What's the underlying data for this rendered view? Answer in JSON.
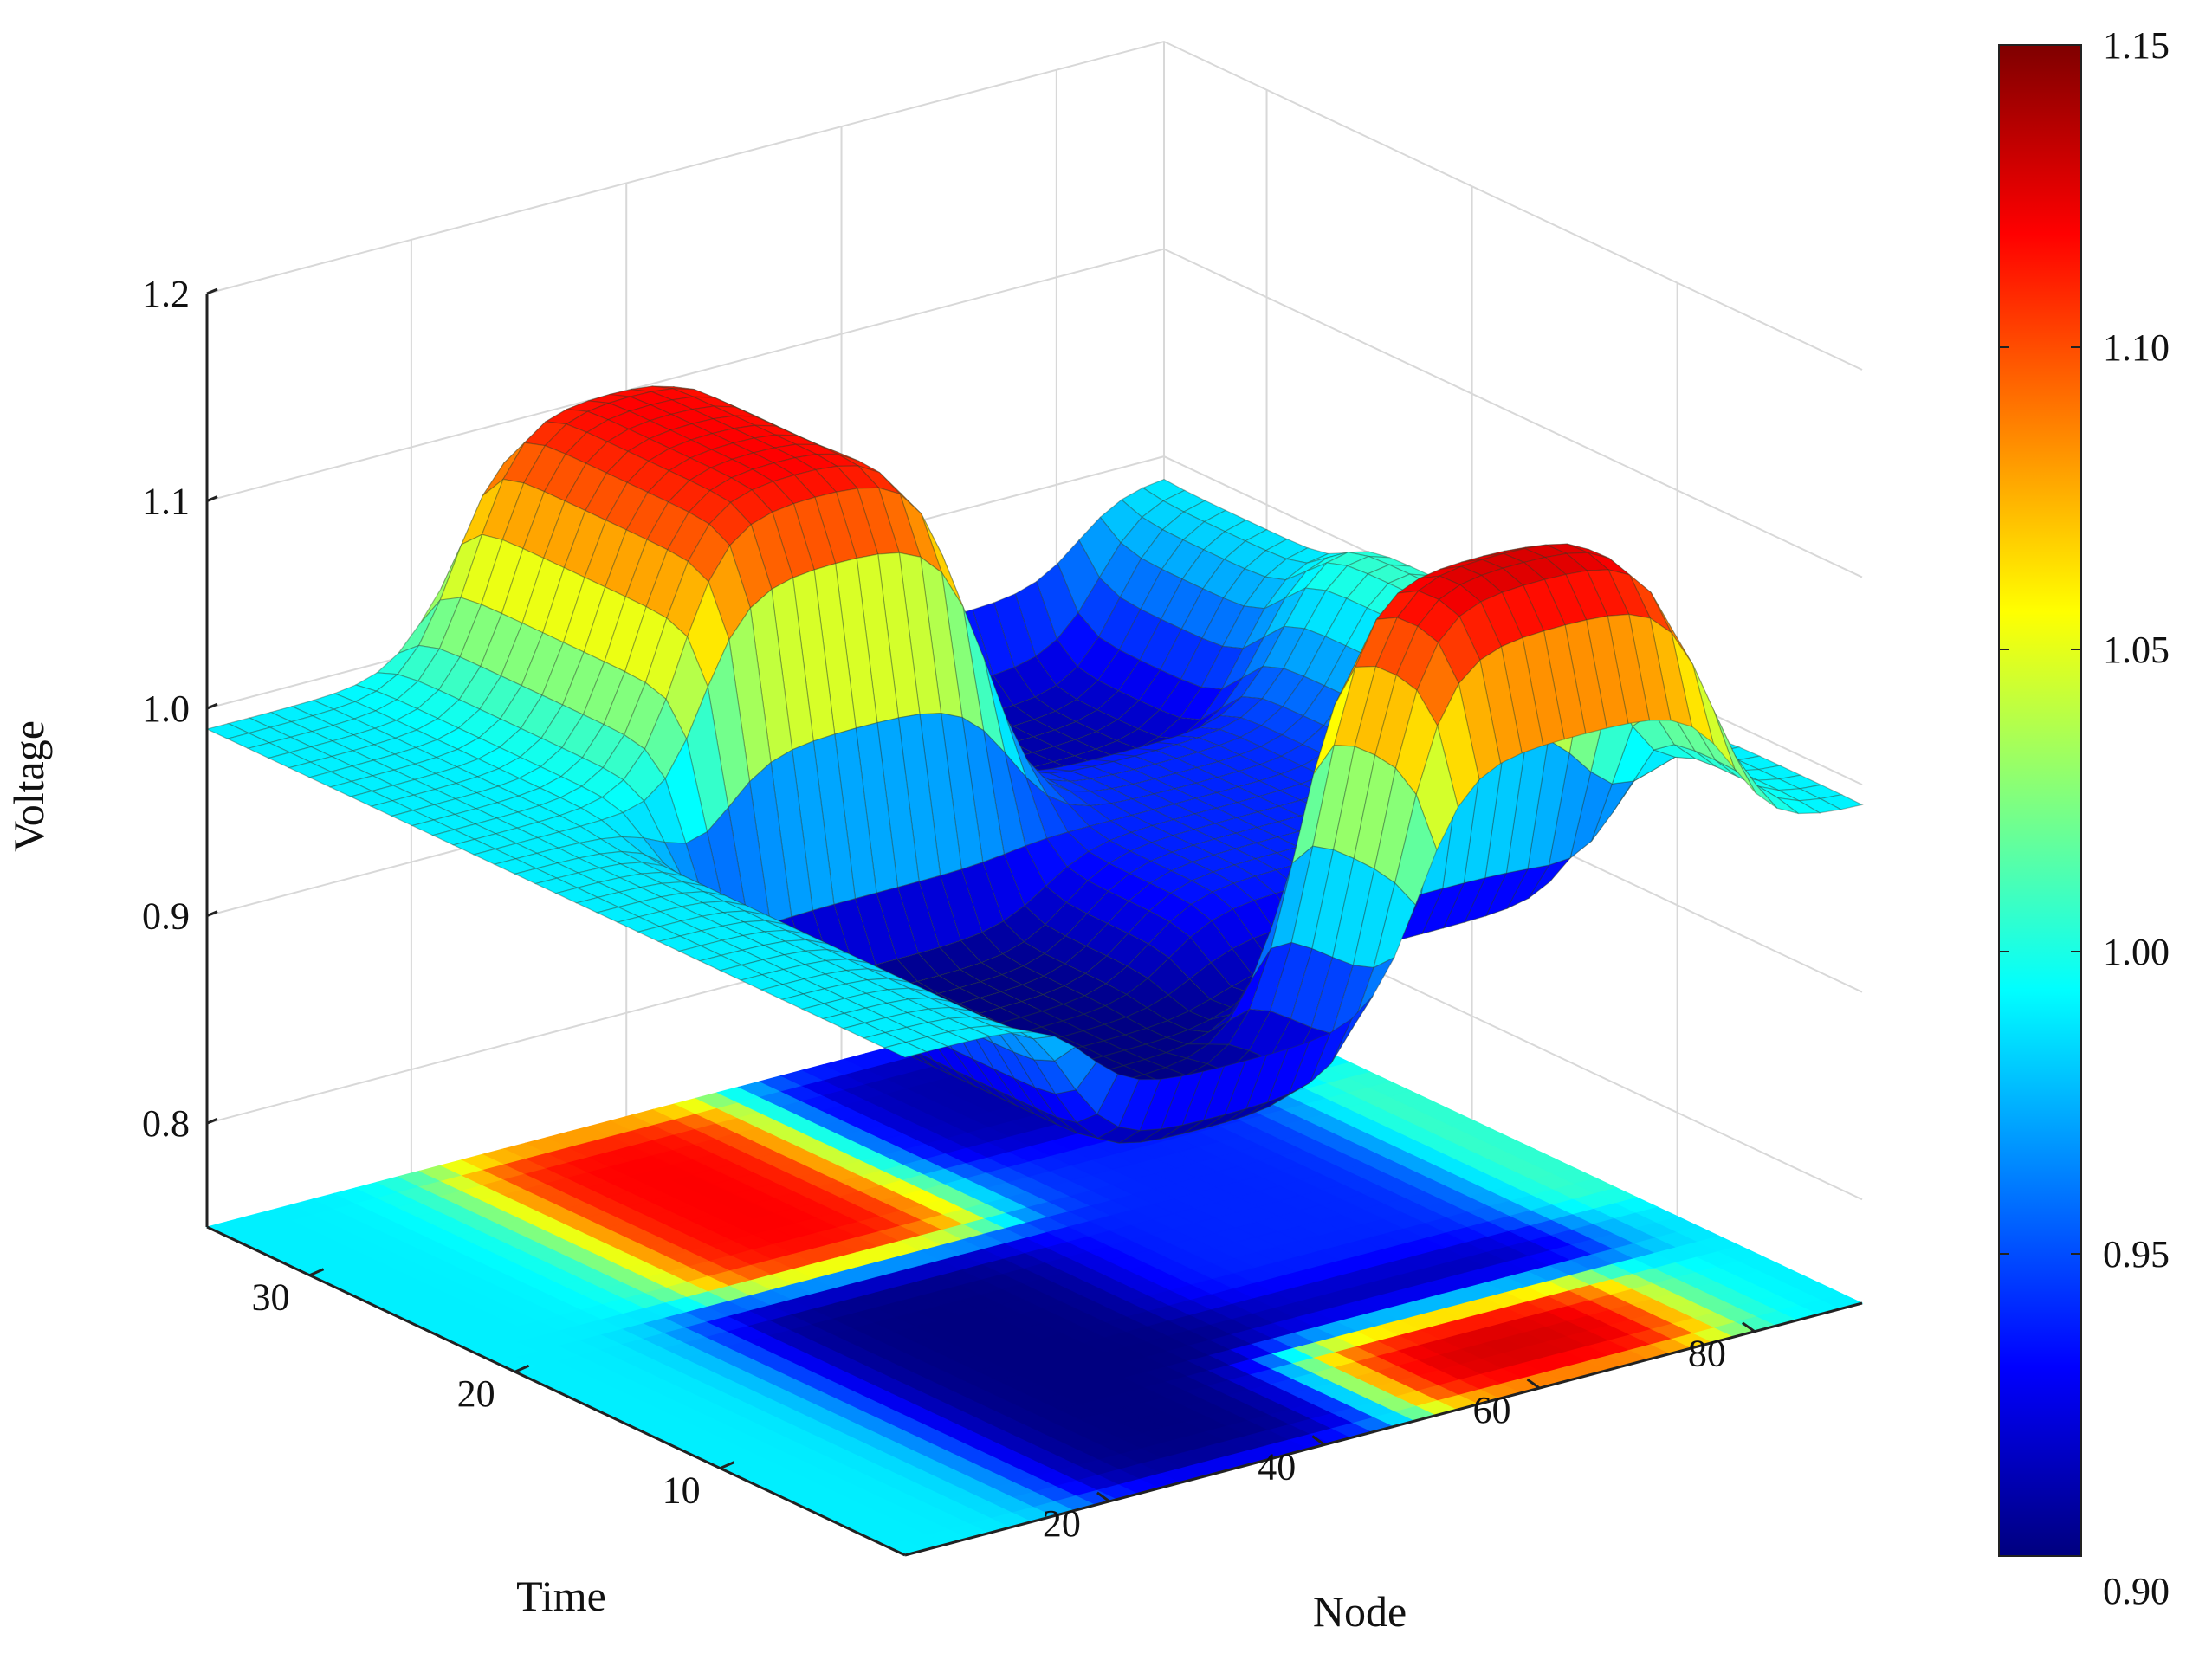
{
  "chart_data": {
    "type": "surface3d",
    "title": "",
    "xlabel": "Node",
    "ylabel": "Time",
    "zlabel": "Voltage",
    "x_ticks": [
      "20",
      "40",
      "60",
      "80"
    ],
    "y_ticks": [
      "10",
      "20",
      "30"
    ],
    "z_ticks": [
      "0.8",
      "0.9",
      "1.0",
      "1.1",
      "1.2"
    ],
    "xlim": [
      1,
      90
    ],
    "ylim": [
      1,
      35
    ],
    "zlim": [
      0.75,
      1.2
    ],
    "grid": true,
    "colorbar": {
      "colormap": "jet",
      "ticks": [
        "1.15",
        "1.10",
        "1.05",
        "1.00",
        "0.95",
        "0.90"
      ],
      "range": [
        0.9,
        1.15
      ],
      "placement": "right"
    },
    "surface": {
      "baseline": 0.99,
      "components": [
        {
          "node_range": [
            18,
            50
          ],
          "time_range": [
            1,
            21
          ],
          "value": -0.09,
          "description": "low region"
        },
        {
          "node_range": [
            22,
            48
          ],
          "time_range": [
            21,
            35
          ],
          "value": 0.13,
          "description": "high region"
        },
        {
          "node_range": [
            50,
            82
          ],
          "time_range": [
            8,
            35
          ],
          "value": -0.08,
          "description": "low region"
        },
        {
          "node_range": [
            48,
            78
          ],
          "time_range": [
            1,
            8
          ],
          "value": 0.14,
          "description": "high region"
        },
        {
          "node_range": [
            48,
            90
          ],
          "time_range": [
            12,
            26
          ],
          "value": 0.03,
          "description": "raised band"
        }
      ]
    },
    "contour_projection": true
  }
}
